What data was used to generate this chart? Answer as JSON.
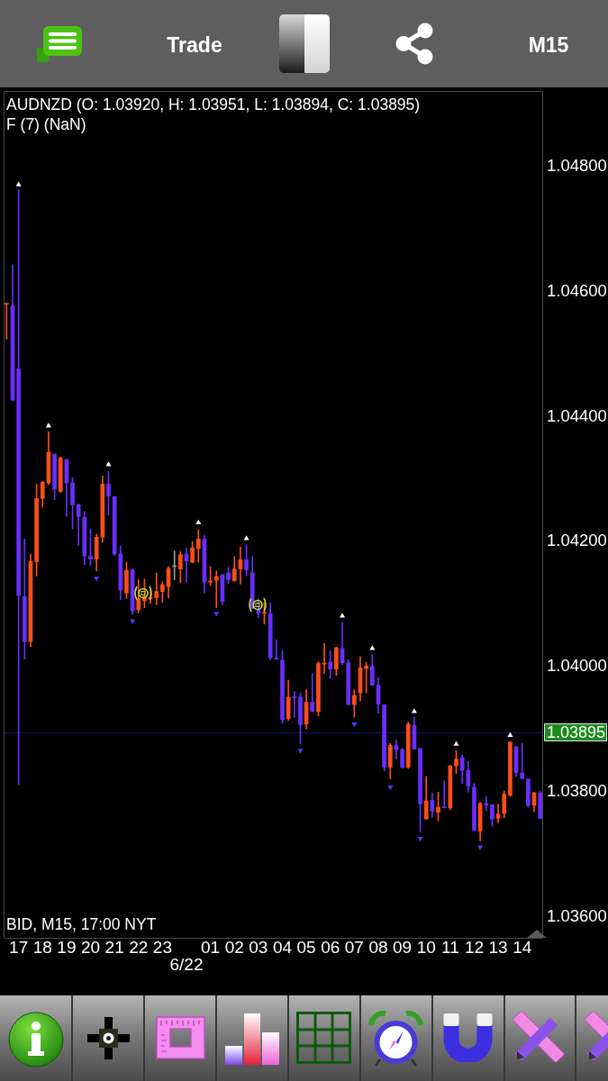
{
  "chart_data": {
    "type": "candlestick",
    "title": "AUDNZD (O: 1.03920, H: 1.03951, L: 1.03894, C: 1.03895)",
    "subtitle": "F (7) (NaN)",
    "annotations": [
      "BID, M15, 17:00 NYT",
      "Trade",
      "M15"
    ],
    "categories": [
      null,
      null,
      "17",
      null,
      null,
      null,
      "18",
      null,
      null,
      null,
      "19",
      null,
      null,
      null,
      "20",
      null,
      null,
      null,
      "21",
      null,
      null,
      null,
      "22",
      null,
      null,
      null,
      "23",
      null,
      null,
      null,
      "6/22",
      null,
      null,
      null,
      "01",
      null,
      null,
      null,
      "02",
      null,
      null,
      null,
      "03",
      null,
      null,
      null,
      "04",
      null,
      null,
      null,
      "05",
      null,
      null,
      null,
      "06",
      null,
      null,
      null,
      "07",
      null,
      null,
      null,
      "08",
      null,
      null,
      null,
      "09",
      null,
      null,
      null,
      "10",
      null,
      null,
      null,
      "11",
      null,
      null,
      null,
      "12",
      null,
      null,
      null,
      "13",
      null,
      null,
      null,
      "14",
      null,
      null,
      null
    ],
    "ohlc": [
      [
        1.0458,
        1.0458,
        1.04524,
        1.0458
      ],
      [
        1.04577,
        1.04643,
        1.04426,
        1.04426
      ],
      [
        1.04476,
        1.04763,
        1.03811,
        1.04114
      ],
      [
        1.04112,
        1.04204,
        1.04012,
        1.0404
      ],
      [
        1.0404,
        1.0418,
        1.04032,
        1.04168
      ],
      [
        1.04168,
        1.04292,
        1.04145,
        1.04269
      ],
      [
        1.04269,
        1.04296,
        1.04255,
        1.04295
      ],
      [
        1.04294,
        1.04376,
        1.04291,
        1.04343
      ],
      [
        1.0434,
        1.0434,
        1.04267,
        1.04284
      ],
      [
        1.0428,
        1.04335,
        1.04279,
        1.04334
      ],
      [
        1.04331,
        1.04332,
        1.0424,
        1.04294
      ],
      [
        1.04294,
        1.04302,
        1.0422,
        1.04259
      ],
      [
        1.04259,
        1.0426,
        1.04194,
        1.0424
      ],
      [
        1.04239,
        1.04248,
        1.04163,
        1.04177
      ],
      [
        1.04177,
        1.0422,
        1.04162,
        1.04172
      ],
      [
        1.04172,
        1.04212,
        1.04153,
        1.04207
      ],
      [
        1.04207,
        1.04305,
        1.04199,
        1.04292
      ],
      [
        1.04292,
        1.04312,
        1.04242,
        1.04273
      ],
      [
        1.04272,
        1.04272,
        1.04177,
        1.0418
      ],
      [
        1.0418,
        1.04193,
        1.04107,
        1.04123
      ],
      [
        1.04118,
        1.04167,
        1.04109,
        1.04154
      ],
      [
        1.04155,
        1.04156,
        1.04084,
        1.04089
      ],
      [
        1.04091,
        1.04139,
        1.04086,
        1.04109
      ],
      [
        1.04105,
        1.0414,
        1.04094,
        1.04112
      ],
      [
        1.04109,
        1.04122,
        1.04101,
        1.0411
      ],
      [
        1.0411,
        1.0415,
        1.04099,
        1.0412
      ],
      [
        1.0412,
        1.04136,
        1.04103,
        1.04131
      ],
      [
        1.04128,
        1.0416,
        1.0411,
        1.04157
      ],
      [
        1.0416,
        1.04185,
        1.04139,
        1.0416
      ],
      [
        1.04156,
        1.04184,
        1.04134,
        1.04179
      ],
      [
        1.0418,
        1.0419,
        1.04135,
        1.04169
      ],
      [
        1.04167,
        1.042,
        1.04166,
        1.0419
      ],
      [
        1.04189,
        1.04219,
        1.04167,
        1.04204
      ],
      [
        1.04204,
        1.0421,
        1.04118,
        1.04135
      ],
      [
        1.04135,
        1.0416,
        1.04129,
        1.04137
      ],
      [
        1.04138,
        1.04153,
        1.04094,
        1.04144
      ],
      [
        1.04147,
        1.04147,
        1.04099,
        1.04104
      ],
      [
        1.0415,
        1.04159,
        1.04133,
        1.04139
      ],
      [
        1.04137,
        1.04176,
        1.04137,
        1.04156
      ],
      [
        1.04156,
        1.04191,
        1.04132,
        1.04171
      ],
      [
        1.04171,
        1.04195,
        1.04145,
        1.04155
      ],
      [
        1.0415,
        1.04176,
        1.04093,
        1.04093
      ],
      [
        1.04091,
        1.04109,
        1.04078,
        1.04085
      ],
      [
        1.04085,
        1.04103,
        1.04068,
        1.04086
      ],
      [
        1.04085,
        1.04102,
        1.04011,
        1.04014
      ],
      [
        1.04013,
        1.04043,
        1.04011,
        1.04012
      ],
      [
        1.0401,
        1.04026,
        1.03909,
        1.03915
      ],
      [
        1.03917,
        1.03978,
        1.03914,
        1.03951
      ],
      [
        1.03951,
        1.0396,
        1.03919,
        1.0395
      ],
      [
        1.03951,
        1.03958,
        1.03876,
        1.03907
      ],
      [
        1.03908,
        1.03963,
        1.039,
        1.03943
      ],
      [
        1.03943,
        1.03989,
        1.03928,
        1.03928
      ],
      [
        1.03928,
        1.04008,
        1.03921,
        1.04005
      ],
      [
        1.04004,
        1.04037,
        1.03989,
        1.04005
      ],
      [
        1.04007,
        1.04025,
        1.03981,
        1.03996
      ],
      [
        1.03996,
        1.04031,
        1.03986,
        1.0403
      ],
      [
        1.04029,
        1.0407,
        1.04003,
        1.04006
      ],
      [
        1.04006,
        1.04011,
        1.03939,
        1.03939
      ],
      [
        1.03939,
        1.03963,
        1.03919,
        1.03954
      ],
      [
        1.03958,
        1.04016,
        1.03945,
        1.03998
      ],
      [
        1.03997,
        1.04007,
        1.03958,
        1.04001
      ],
      [
        1.04001,
        1.04019,
        1.0397,
        1.0397
      ],
      [
        1.0397,
        1.03982,
        1.03925,
        1.0394
      ],
      [
        1.03939,
        1.03939,
        1.03833,
        1.03839
      ],
      [
        1.03839,
        1.03877,
        1.0382,
        1.03874
      ],
      [
        1.03874,
        1.03883,
        1.03852,
        1.03867
      ],
      [
        1.03867,
        1.03869,
        1.03837,
        1.03839
      ],
      [
        1.03839,
        1.03911,
        1.03837,
        1.03908
      ],
      [
        1.03906,
        1.03919,
        1.03868,
        1.03868
      ],
      [
        1.03869,
        1.03869,
        1.03735,
        1.0378
      ],
      [
        1.03756,
        1.03824,
        1.03756,
        1.03785
      ],
      [
        1.03786,
        1.03798,
        1.03759,
        1.03769
      ],
      [
        1.03767,
        1.03799,
        1.03753,
        1.03775
      ],
      [
        1.03775,
        1.03817,
        1.03774,
        1.03774
      ],
      [
        1.03774,
        1.03842,
        1.03771,
        1.03841
      ],
      [
        1.03841,
        1.03865,
        1.03829,
        1.03852
      ],
      [
        1.03854,
        1.03858,
        1.03813,
        1.03834
      ],
      [
        1.03834,
        1.03848,
        1.03799,
        1.03809
      ],
      [
        1.03807,
        1.03813,
        1.03737,
        1.03738
      ],
      [
        1.03737,
        1.03783,
        1.03721,
        1.03781
      ],
      [
        1.03781,
        1.03792,
        1.03769,
        1.03778
      ],
      [
        1.03779,
        1.03779,
        1.03744,
        1.03756
      ],
      [
        1.03757,
        1.0378,
        1.0375,
        1.03764
      ],
      [
        1.03765,
        1.03801,
        1.03758,
        1.03796
      ],
      [
        1.03794,
        1.0388,
        1.03792,
        1.03879
      ],
      [
        1.03872,
        1.03872,
        1.03824,
        1.0383
      ],
      [
        1.0383,
        1.03877,
        1.0382,
        1.03821
      ],
      [
        1.0382,
        1.0382,
        1.03775,
        1.03778
      ],
      [
        1.03778,
        1.03799,
        1.03768,
        1.03798
      ],
      [
        1.03798,
        1.03801,
        1.03757,
        1.03757
      ]
    ],
    "colors": [
      "#ff4d1a",
      "#6a2eff",
      "#6a2eff",
      "#6a2eff",
      "#ff4d1a",
      "#ff4d1a",
      "#ff4d1a",
      "#ff4d1a",
      "#6a2eff",
      "#ff4d1a",
      "#6a2eff",
      "#6a2eff",
      "#6a2eff",
      "#6a2eff",
      "#6a2eff",
      "#ff4d1a",
      "#ff4d1a",
      "#6a2eff",
      "#6a2eff",
      "#6a2eff",
      "#ff4d1a",
      "#6a2eff",
      "#ff4d1a",
      "#ff4d1a",
      "#ff4d1a",
      "#ff4d1a",
      "#ff4d1a",
      "#ff4d1a",
      "#9a9a9a",
      "#ff4d1a",
      "#6a2eff",
      "#ff4d1a",
      "#ff4d1a",
      "#6a2eff",
      "#ff4d1a",
      "#ff4d1a",
      "#6a2eff",
      "#6a2eff",
      "#ff4d1a",
      "#ff4d1a",
      "#6a2eff",
      "#6a2eff",
      "#6a2eff",
      "#ff4d1a",
      "#6a2eff",
      "#6a2eff",
      "#6a2eff",
      "#ff4d1a",
      "#6a2eff",
      "#6a2eff",
      "#ff4d1a",
      "#6a2eff",
      "#ff4d1a",
      "#ff4d1a",
      "#6a2eff",
      "#ff4d1a",
      "#6a2eff",
      "#6a2eff",
      "#ff4d1a",
      "#ff4d1a",
      "#ff4d1a",
      "#6a2eff",
      "#6a2eff",
      "#6a2eff",
      "#ff4d1a",
      "#6a2eff",
      "#6a2eff",
      "#ff4d1a",
      "#6a2eff",
      "#6a2eff",
      "#ff4d1a",
      "#6a2eff",
      "#ff4d1a",
      "#6a2eff",
      "#ff4d1a",
      "#ff4d1a",
      "#6a2eff",
      "#6a2eff",
      "#6a2eff",
      "#ff4d1a",
      "#6a2eff",
      "#6a2eff",
      "#ff4d1a",
      "#ff4d1a",
      "#ff4d1a",
      "#6a2eff",
      "#6a2eff",
      "#6a2eff",
      "#ff4d1a",
      "#6a2eff"
    ],
    "series": [
      {
        "type": "scatter",
        "color": "#ffffff",
        "marker": "triangle",
        "values": [
          null,
          null,
          1.04771,
          null,
          null,
          null,
          null,
          1.04385,
          null,
          null,
          null,
          null,
          null,
          null,
          null,
          null,
          null,
          1.04323,
          null,
          null,
          null,
          null,
          null,
          null,
          null,
          null,
          null,
          null,
          null,
          null,
          null,
          null,
          1.0423,
          null,
          null,
          null,
          null,
          null,
          null,
          null,
          1.04205,
          null,
          null,
          null,
          null,
          null,
          null,
          null,
          null,
          null,
          null,
          null,
          null,
          null,
          null,
          null,
          1.04081,
          null,
          null,
          null,
          null,
          1.04029,
          null,
          null,
          null,
          null,
          null,
          null,
          1.03928,
          null,
          null,
          null,
          null,
          null,
          null,
          1.03876,
          null,
          null,
          null,
          null,
          null,
          null,
          null,
          null,
          1.0389,
          null,
          null,
          null,
          null,
          null
        ]
      },
      {
        "type": "scatter",
        "color": "#4a3cff",
        "marker": "triangle",
        "values": [
          null,
          null,
          null,
          null,
          null,
          null,
          null,
          null,
          null,
          null,
          null,
          null,
          null,
          null,
          null,
          1.04141,
          null,
          null,
          null,
          null,
          null,
          1.04073,
          null,
          null,
          null,
          null,
          null,
          null,
          null,
          null,
          null,
          null,
          null,
          null,
          null,
          1.04085,
          null,
          null,
          null,
          null,
          null,
          null,
          null,
          null,
          null,
          null,
          null,
          null,
          null,
          1.03866,
          null,
          null,
          null,
          null,
          null,
          null,
          null,
          null,
          1.03908,
          null,
          null,
          null,
          null,
          null,
          1.03807,
          null,
          null,
          null,
          null,
          1.03725,
          null,
          null,
          null,
          null,
          null,
          null,
          null,
          null,
          null,
          1.03711,
          null,
          null,
          null,
          null,
          null,
          null,
          null,
          null,
          null,
          null
        ]
      }
    ],
    "ylim": [
      1.03566,
      1.04921
    ],
    "yticks": [
      {
        "value": 1.036,
        "label": "1.03600"
      },
      {
        "value": 1.038,
        "label": "1.03800"
      },
      {
        "value": 1.04,
        "label": "1.04000"
      },
      {
        "value": 1.042,
        "label": "1.04200"
      },
      {
        "value": 1.044,
        "label": "1.04400"
      },
      {
        "value": 1.046,
        "label": "1.04600"
      },
      {
        "value": 1.048,
        "label": "1.04800"
      }
    ],
    "ref_lines": [
      {
        "axis": "y",
        "value": 1.03895,
        "label": "1.03895",
        "color": "#14147a"
      }
    ]
  }
}
